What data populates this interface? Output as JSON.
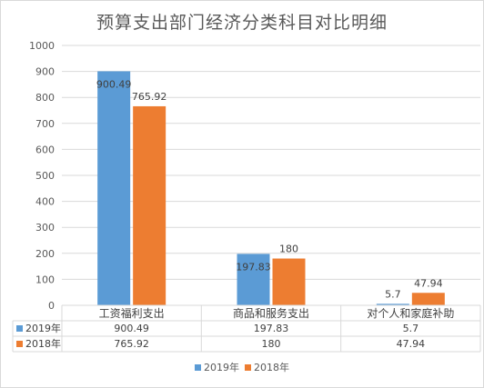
{
  "chart_data": {
    "type": "bar",
    "title": "预算支出部门经济分类科目对比明细",
    "categories": [
      "工资福利支出",
      "商品和服务支出",
      "对个人和家庭补助"
    ],
    "series": [
      {
        "name": "2019年",
        "values": [
          900.49,
          197.83,
          5.7
        ],
        "labels": [
          "900.49",
          "197.83",
          "5.7"
        ],
        "color": "#5b9bd5"
      },
      {
        "name": "2018年",
        "values": [
          765.92,
          180,
          47.94
        ],
        "labels": [
          "765.92",
          "180",
          "47.94"
        ],
        "color": "#ed7d31"
      }
    ],
    "ylim": [
      0,
      1000
    ],
    "yticks": [
      0,
      100,
      200,
      300,
      400,
      500,
      600,
      700,
      800,
      900,
      1000
    ],
    "grid": true,
    "legend_position": "bottom",
    "data_table": true
  }
}
